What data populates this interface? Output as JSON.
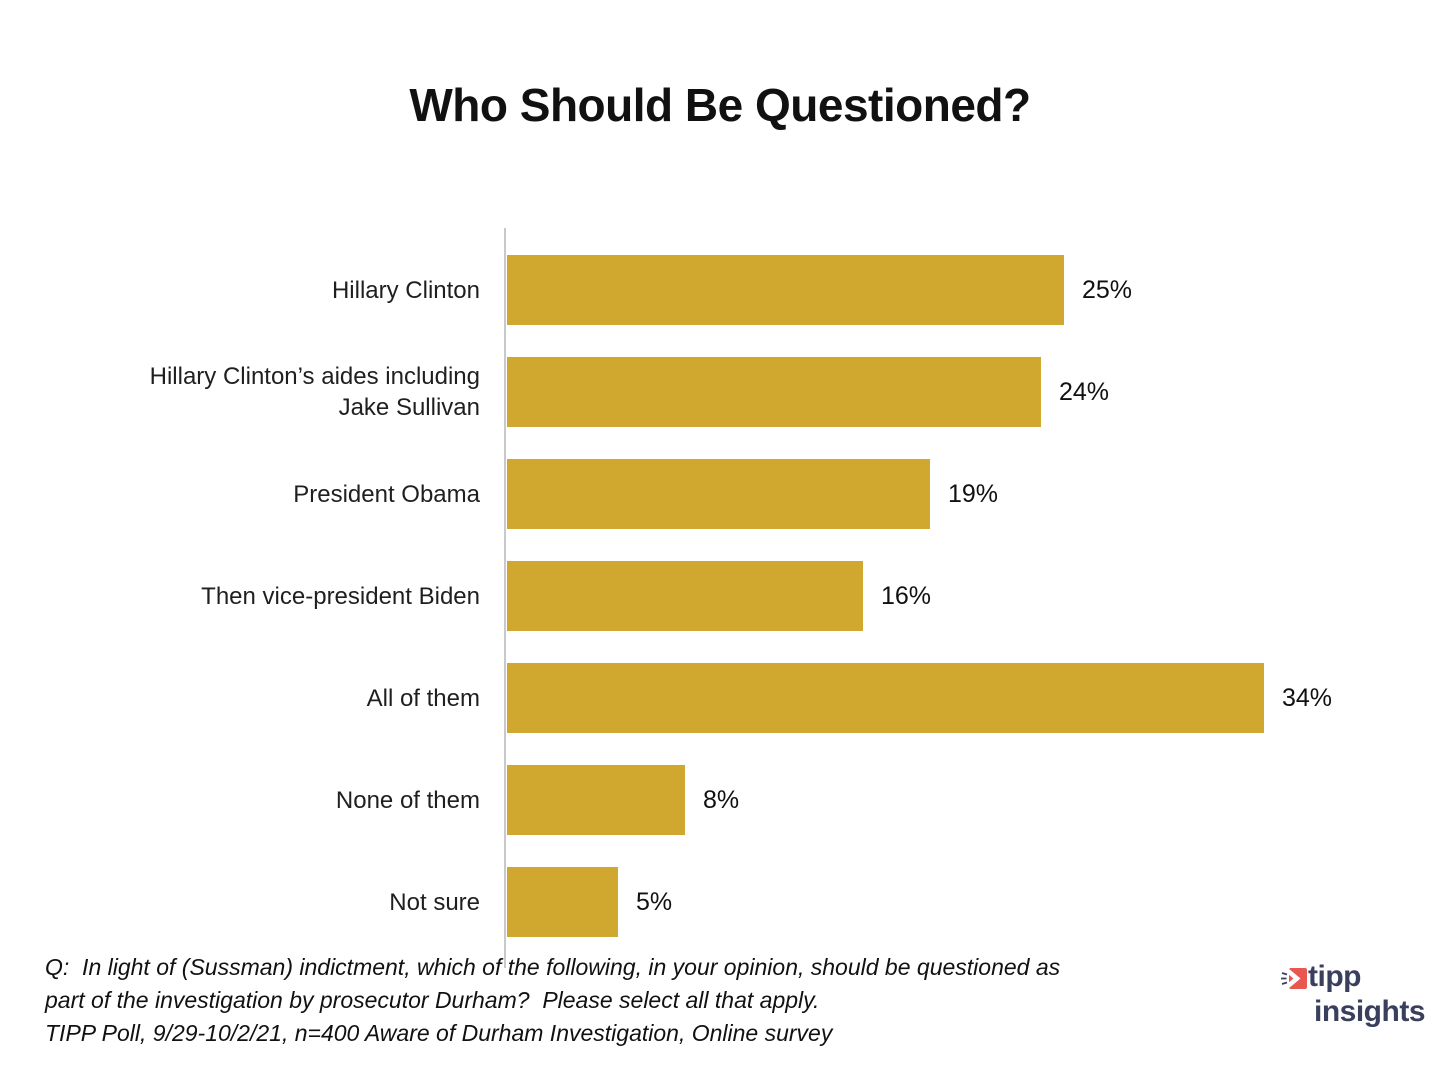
{
  "title": "Who Should Be Questioned?",
  "chart_data": {
    "type": "bar",
    "orientation": "horizontal",
    "title": "Who Should Be Questioned?",
    "categories": [
      "Hillary Clinton",
      "Hillary Clinton’s aides including\nJake Sullivan",
      "President Obama",
      "Then vice-president Biden",
      "All of them",
      "None of them",
      "Not sure"
    ],
    "values": [
      25,
      24,
      19,
      16,
      34,
      8,
      5
    ],
    "value_labels": [
      "25%",
      "24%",
      "19%",
      "16%",
      "34%",
      "8%",
      "5%"
    ],
    "xlabel": "",
    "ylabel": "",
    "xlim": [
      0,
      40
    ],
    "grid": false,
    "legend": false,
    "bar_color": "#d0a72f",
    "axis_line_color": "#c9c9c9",
    "value_label_position": "right-of-bar"
  },
  "footer": {
    "line1": "Q:  In light of (Sussman) indictment, which of the following, in your opinion, should be questioned as",
    "line2": "part of the investigation by prosecutor Durham?  Please select all that apply.",
    "line3": "TIPP Poll, 9/29-10/2/21, n=400 Aware of Durham Investigation, Online survey"
  },
  "logo": {
    "word_top": "tipp",
    "word_bottom": "insights",
    "icon": "tipp-flag-icon",
    "navy": "#3b3f5e",
    "red": "#e8584f"
  }
}
